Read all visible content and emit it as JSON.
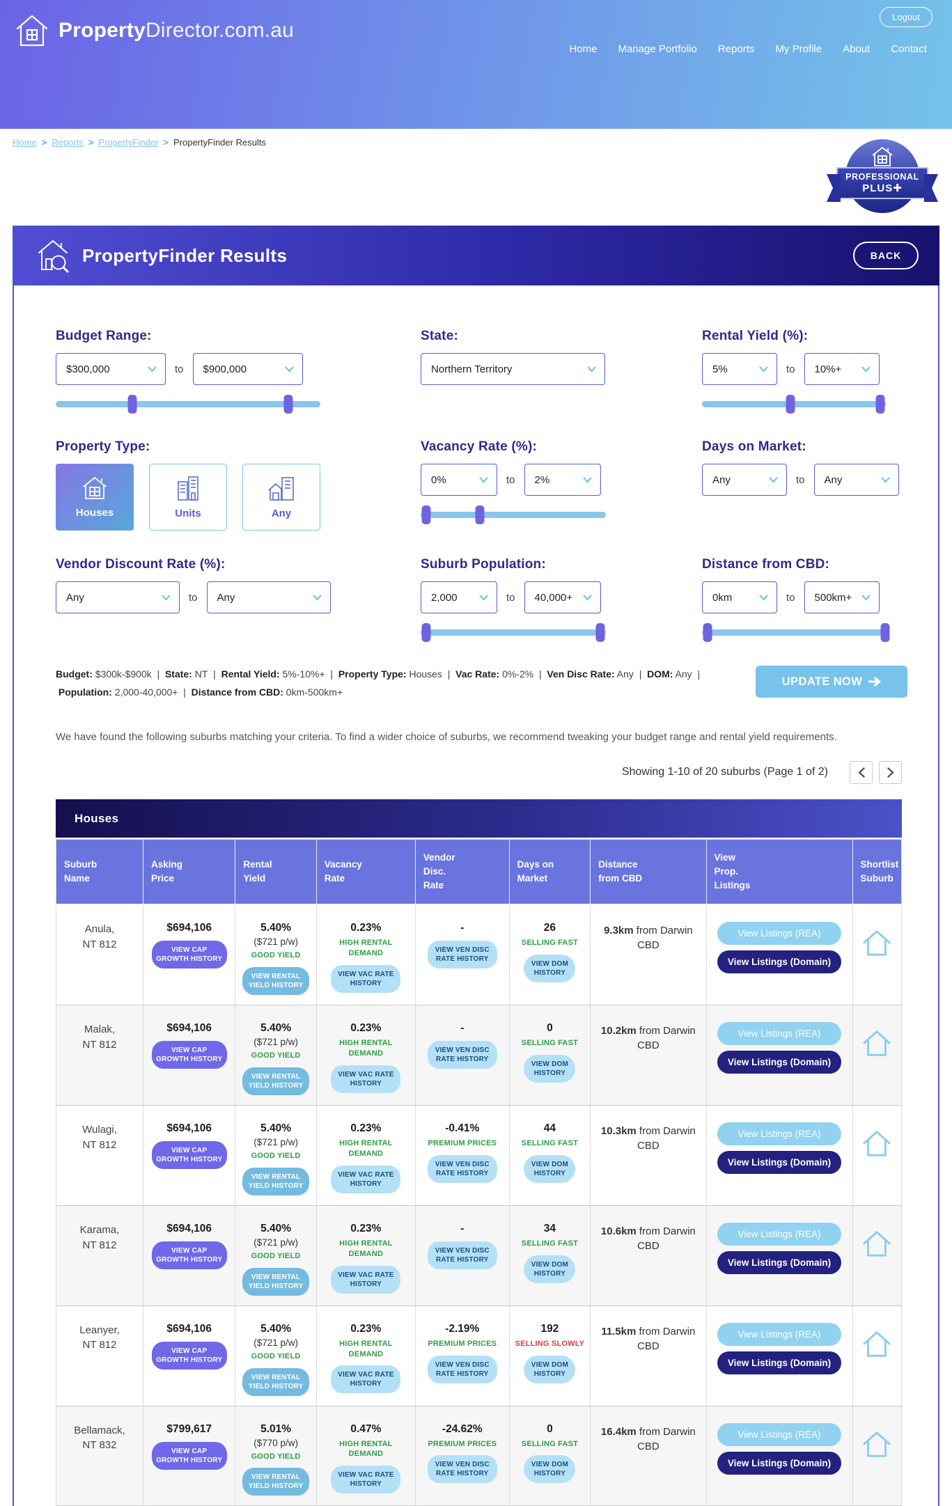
{
  "colors": {
    "header_gradient_left": "#6b63e6",
    "header_gradient_right": "#74c3e9",
    "title_bar_left": "#514ed4",
    "title_bar_right": "#17116d",
    "accent_sky": "#77c3ea",
    "accent_indigo": "#6f68e8",
    "table_header_blue": "#6a74de",
    "positive_green": "#2e9e44",
    "negative_red": "#dd3c3c",
    "link_blue": "#85c6ea",
    "domain_navy": "#24217f",
    "slider_track": "#8ac5ec",
    "slider_handle": "#6f63de"
  },
  "header": {
    "logo_bold": "Property",
    "logo_rest": "Director.com.au",
    "nav": [
      "Home",
      "Manage Portfolio",
      "Reports",
      "My Profile",
      "About",
      "Contact"
    ],
    "logout": "Logout"
  },
  "breadcrumb": {
    "items": [
      "Home",
      "Reports",
      "PropertyFinder",
      "PropertyFinder Results"
    ]
  },
  "badge": {
    "line1": "PROFESSIONAL",
    "line2": "PLUS✚"
  },
  "page": {
    "title": "PropertyFinder Results",
    "back": "BACK"
  },
  "filters": {
    "to_word": "to",
    "budget": {
      "label": "Budget Range:",
      "from": "$300,000",
      "to": "$900,000"
    },
    "state": {
      "label": "State:",
      "value": "Northern Territory"
    },
    "rental_yield": {
      "label": "Rental Yield (%):",
      "from": "5%",
      "to": "10%+"
    },
    "property_type": {
      "label": "Property Type:",
      "options": [
        {
          "label": "Houses",
          "selected": true
        },
        {
          "label": "Units",
          "selected": false
        },
        {
          "label": "Any",
          "selected": false
        }
      ]
    },
    "vacancy": {
      "label": "Vacancy Rate (%):",
      "from": "0%",
      "to": "2%"
    },
    "dom": {
      "label": "Days on Market:",
      "from": "Any",
      "to": "Any"
    },
    "vendor": {
      "label": "Vendor Discount Rate (%):",
      "from": "Any",
      "to": "Any"
    },
    "population": {
      "label": "Suburb Population:",
      "from": "2,000",
      "to": "40,000+"
    },
    "distance": {
      "label": "Distance from CBD:",
      "from": "0km",
      "to": "500km+"
    }
  },
  "summary": {
    "separator": "|",
    "parts": [
      {
        "label": "Budget:",
        "value": "$300k-$900k"
      },
      {
        "label": "State:",
        "value": "NT"
      },
      {
        "label": "Rental Yield:",
        "value": "5%-10%+"
      },
      {
        "label": "Property Type:",
        "value": "Houses"
      },
      {
        "label": "Vac Rate:",
        "value": "0%-2%"
      },
      {
        "label": "Ven Disc Rate:",
        "value": "Any"
      },
      {
        "label": "DOM:",
        "value": "Any"
      },
      {
        "label": "Population:",
        "value": "2,000-40,000+"
      },
      {
        "label": "Distance from CBD:",
        "value": "0km-500km+"
      }
    ],
    "update_button": "UPDATE NOW"
  },
  "results": {
    "intro": "We have found the following suburbs matching your criteria. To find a wider choice of suburbs, we recommend tweaking your budget range and rental yield requirements.",
    "showing": "Showing 1-10 of 20 suburbs (Page 1 of 2)"
  },
  "table": {
    "title": "Houses",
    "columns": [
      "Suburb\nName",
      "Asking\nPrice",
      "Rental\nYield",
      "Vacancy\nRate",
      "Vendor\nDisc.\nRate",
      "Days on\nMarket",
      "Distance\nfrom CBD",
      "View\nProp.\nListings",
      "Shortlist\nSuburb"
    ],
    "buttons": {
      "view_cap": "VIEW CAP GROWTH HISTORY",
      "view_rental": "VIEW RENTAL YIELD HISTORY",
      "view_vac": "VIEW VAC RATE HISTORY",
      "view_ven": "VIEW VEN DISC RATE HISTORY",
      "view_dom": "VIEW DOM HISTORY",
      "rea": "View Listings (REA)",
      "domain": "View Listings (Domain)"
    },
    "rows": [
      {
        "suburb": "Anula,",
        "postcode": "NT 812",
        "price": "$694,106",
        "yield": "5.40%",
        "rent": "($721 p/w)",
        "yield_tag": "GOOD YIELD",
        "vacancy": "0.23%",
        "vacancy_tag": "HIGH RENTAL DEMAND",
        "vendor": "-",
        "vendor_tag": "",
        "dom": "26",
        "dom_tag": "SELLING FAST",
        "dom_slow": false,
        "distance_value": "9.3km",
        "distance_rest": "from Darwin CBD"
      },
      {
        "suburb": "Malak,",
        "postcode": "NT 812",
        "price": "$694,106",
        "yield": "5.40%",
        "rent": "($721 p/w)",
        "yield_tag": "GOOD YIELD",
        "vacancy": "0.23%",
        "vacancy_tag": "HIGH RENTAL DEMAND",
        "vendor": "-",
        "vendor_tag": "",
        "dom": "0",
        "dom_tag": "SELLING FAST",
        "dom_slow": false,
        "distance_value": "10.2km",
        "distance_rest": "from Darwin CBD"
      },
      {
        "suburb": "Wulagi,",
        "postcode": "NT 812",
        "price": "$694,106",
        "yield": "5.40%",
        "rent": "($721 p/w)",
        "yield_tag": "GOOD YIELD",
        "vacancy": "0.23%",
        "vacancy_tag": "HIGH RENTAL DEMAND",
        "vendor": "-0.41%",
        "vendor_tag": "PREMIUM PRICES",
        "dom": "44",
        "dom_tag": "SELLING FAST",
        "dom_slow": false,
        "distance_value": "10.3km",
        "distance_rest": "from Darwin CBD"
      },
      {
        "suburb": "Karama,",
        "postcode": "NT 812",
        "price": "$694,106",
        "yield": "5.40%",
        "rent": "($721 p/w)",
        "yield_tag": "GOOD YIELD",
        "vacancy": "0.23%",
        "vacancy_tag": "HIGH RENTAL DEMAND",
        "vendor": "-",
        "vendor_tag": "",
        "dom": "34",
        "dom_tag": "SELLING FAST",
        "dom_slow": false,
        "distance_value": "10.6km",
        "distance_rest": "from Darwin CBD"
      },
      {
        "suburb": "Leanyer,",
        "postcode": "NT 812",
        "price": "$694,106",
        "yield": "5.40%",
        "rent": "($721 p/w)",
        "yield_tag": "GOOD YIELD",
        "vacancy": "0.23%",
        "vacancy_tag": "HIGH RENTAL DEMAND",
        "vendor": "-2.19%",
        "vendor_tag": "PREMIUM PRICES",
        "dom": "192",
        "dom_tag": "SELLING SLOWLY",
        "dom_slow": true,
        "distance_value": "11.5km",
        "distance_rest": "from Darwin CBD"
      },
      {
        "suburb": "Bellamack,",
        "postcode": "NT 832",
        "price": "$799,617",
        "yield": "5.01%",
        "rent": "($770 p/w)",
        "yield_tag": "GOOD YIELD",
        "vacancy": "0.47%",
        "vacancy_tag": "HIGH RENTAL DEMAND",
        "vendor": "-24.62%",
        "vendor_tag": "PREMIUM PRICES",
        "dom": "0",
        "dom_tag": "SELLING FAST",
        "dom_slow": false,
        "distance_value": "16.4km",
        "distance_rest": "from Darwin CBD"
      }
    ]
  }
}
